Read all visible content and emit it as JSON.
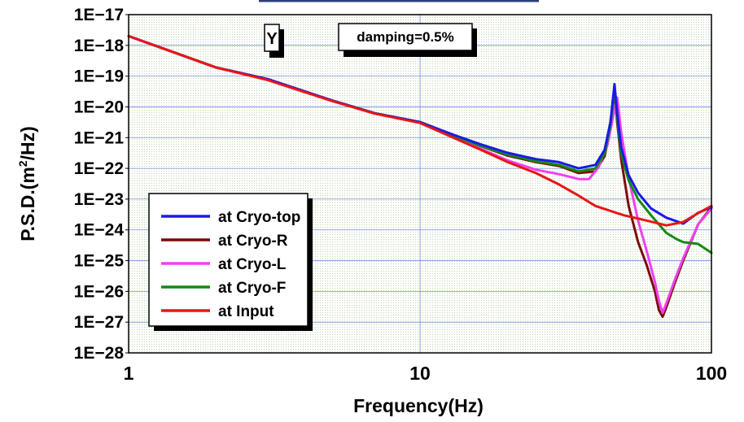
{
  "chart_data": {
    "type": "line",
    "title": "",
    "xlabel": "Frequency(Hz)",
    "ylabel_base": "P.S.D.(m",
    "ylabel_sup": "2",
    "ylabel_tail": "/Hz)",
    "x_scale": "log",
    "y_scale": "log",
    "xlim": [
      1,
      100
    ],
    "ylim": [
      1e-28,
      1e-17
    ],
    "grid": true,
    "legend_position": "bottom-left",
    "x_ticks": [
      {
        "value": 1,
        "label": "1"
      },
      {
        "value": 10,
        "label": "10"
      },
      {
        "value": 100,
        "label": "100"
      }
    ],
    "y_ticks": [
      {
        "exp": -17,
        "label": "1E−17"
      },
      {
        "exp": -18,
        "label": "1E−18"
      },
      {
        "exp": -19,
        "label": "1E−19"
      },
      {
        "exp": -20,
        "label": "1E−20"
      },
      {
        "exp": -21,
        "label": "1E−21"
      },
      {
        "exp": -22,
        "label": "1E−22"
      },
      {
        "exp": -23,
        "label": "1E−23"
      },
      {
        "exp": -24,
        "label": "1E−24"
      },
      {
        "exp": -25,
        "label": "1E−25"
      },
      {
        "exp": -26,
        "label": "1E−26"
      },
      {
        "exp": -27,
        "label": "1E−27"
      },
      {
        "exp": -28,
        "label": "1E−28"
      }
    ],
    "annotations": [
      {
        "id": "axis-tag",
        "text": "Y"
      },
      {
        "id": "damping",
        "text": "damping=0.5%"
      }
    ],
    "series": [
      {
        "name": "at Cryo-top",
        "color": "#1a1ae6",
        "x": [
          1,
          2,
          3,
          5,
          7,
          10,
          13,
          16,
          20,
          25,
          30,
          35,
          40,
          43,
          45,
          46.5,
          47.5,
          49,
          52,
          56,
          62,
          70,
          80,
          90,
          100
        ],
        "y": [
          2e-18,
          1.9e-19,
          8e-20,
          1.6e-20,
          6.2e-21,
          3.2e-21,
          1.25e-21,
          6.2e-22,
          3.2e-22,
          2e-22,
          1.6e-22,
          1e-22,
          1.3e-22,
          4e-22,
          3.2e-21,
          5.5e-20,
          6e-21,
          5e-22,
          6e-23,
          1.6e-23,
          5e-24,
          2.5e-24,
          1.6e-24,
          3.6e-24,
          5.5e-24
        ]
      },
      {
        "name": "at Cryo-R",
        "color": "#7a0c0c",
        "x": [
          1,
          2,
          3,
          5,
          7,
          10,
          13,
          16,
          20,
          25,
          30,
          35,
          40,
          43,
          45,
          46.5,
          47.5,
          49,
          52,
          56,
          60,
          64,
          66,
          68,
          70,
          75,
          80,
          90,
          100
        ],
        "y": [
          2e-18,
          1.9e-19,
          8e-20,
          1.6e-20,
          6.2e-21,
          3.2e-21,
          1.2e-21,
          5.5e-22,
          2.6e-22,
          1.6e-22,
          1.2e-22,
          7e-23,
          8e-23,
          2.5e-22,
          2e-21,
          3.5e-20,
          3e-21,
          2e-22,
          6e-24,
          4e-25,
          7e-26,
          1e-26,
          2.5e-27,
          1.5e-27,
          3e-27,
          2e-26,
          1e-25,
          1.5e-24,
          5.5e-24
        ]
      },
      {
        "name": "at Cryo-L",
        "color": "#f040f0",
        "x": [
          1,
          2,
          3,
          5,
          7,
          10,
          13,
          16,
          20,
          25,
          30,
          35,
          38,
          41,
          44,
          46,
          47.5,
          49,
          52,
          56,
          60,
          64,
          66,
          68,
          70,
          75,
          80,
          90,
          100
        ],
        "y": [
          2e-18,
          1.9e-19,
          8e-20,
          1.6e-20,
          6.2e-21,
          3.2e-21,
          1.1e-21,
          4.5e-22,
          1.8e-22,
          9e-23,
          6.5e-23,
          4.5e-23,
          4.5e-23,
          1.1e-22,
          6e-22,
          5e-21,
          2e-20,
          1.5e-21,
          5e-23,
          2e-24,
          2e-25,
          2e-26,
          5e-27,
          2e-27,
          4e-27,
          2.5e-26,
          1.2e-25,
          1.5e-24,
          5e-24
        ]
      },
      {
        "name": "at Cryo-F",
        "color": "#128a12",
        "x": [
          1,
          2,
          3,
          5,
          7,
          10,
          13,
          16,
          20,
          25,
          30,
          35,
          40,
          43,
          45,
          46.5,
          47.5,
          49,
          52,
          56,
          62,
          70,
          76,
          80,
          90,
          100
        ],
        "y": [
          2e-18,
          1.9e-19,
          8e-20,
          1.6e-20,
          6.2e-21,
          3.2e-21,
          1.2e-21,
          5.5e-22,
          2.8e-22,
          1.7e-22,
          1.3e-22,
          8e-23,
          1e-22,
          3e-22,
          2.5e-21,
          4e-20,
          4e-21,
          3e-22,
          4e-23,
          1e-23,
          3e-24,
          8e-25,
          5e-25,
          4e-25,
          3.5e-25,
          1.8e-25
        ]
      },
      {
        "name": "at Input",
        "color": "#e81616",
        "x": [
          1,
          2,
          3,
          5,
          7,
          10,
          13,
          16,
          20,
          25,
          30,
          35,
          40,
          50,
          60,
          70,
          80,
          90,
          100
        ],
        "y": [
          2e-18,
          1.9e-19,
          7.5e-20,
          1.55e-20,
          6e-21,
          3e-21,
          1e-21,
          4.2e-22,
          1.6e-22,
          7e-23,
          3e-23,
          1.3e-23,
          6e-24,
          3e-24,
          2e-24,
          1.4e-24,
          1.8e-24,
          3.5e-24,
          6e-24
        ]
      }
    ]
  }
}
